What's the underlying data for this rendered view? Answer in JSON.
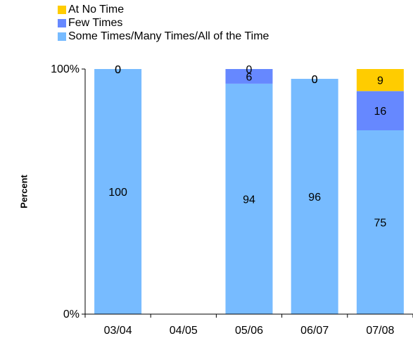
{
  "chart_data": {
    "type": "bar",
    "stacked": true,
    "categories": [
      "03/04",
      "04/05",
      "05/06",
      "06/07",
      "07/08"
    ],
    "series": [
      {
        "name": "Some Times/Many Times/All of the Time",
        "color": "#77BBFF",
        "values": [
          100,
          null,
          94,
          96,
          75
        ],
        "labels": [
          "100",
          "",
          "94",
          "96",
          "75"
        ]
      },
      {
        "name": "Few Times",
        "color": "#6688FF",
        "values": [
          0,
          null,
          6,
          0,
          16
        ],
        "labels": [
          "0",
          "",
          "6",
          "0",
          "16"
        ]
      },
      {
        "name": "At No Time",
        "color": "#FFCC00",
        "values": [
          0,
          null,
          0,
          0,
          9
        ],
        "labels": [
          "0",
          "",
          "0",
          "0",
          "9"
        ]
      }
    ],
    "ylabel": "Percent",
    "xlabel": "",
    "ylim": [
      0,
      100
    ],
    "yticks": [
      "0%",
      "100%"
    ],
    "legend_position": "top-left",
    "grid": false
  }
}
